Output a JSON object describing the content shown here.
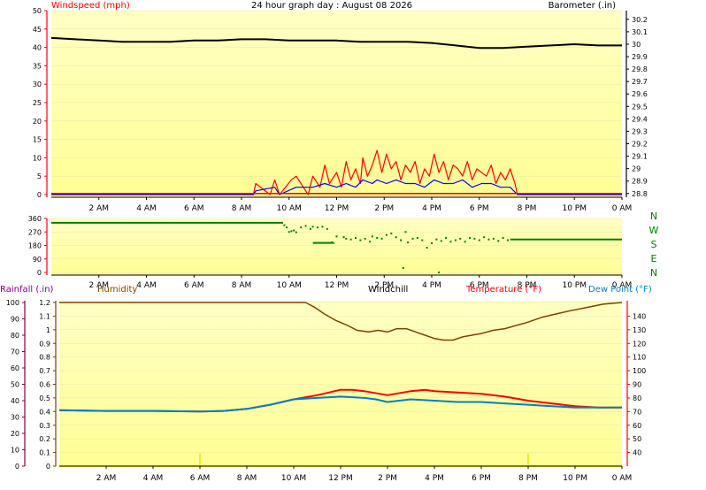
{
  "chart_data": [
    {
      "type": "line",
      "title": "24 hour graph day : August 08 2026",
      "x_ticks": [
        "2 AM",
        "4 AM",
        "6 AM",
        "8 AM",
        "10 AM",
        "12 PM",
        "2 PM",
        "4 PM",
        "6 PM",
        "8 PM",
        "10 PM",
        "0 AM"
      ],
      "x_range_hours": [
        0,
        24
      ],
      "axes": {
        "left": {
          "label": "Windspeed (mph)",
          "ylim": [
            0,
            50
          ],
          "ticks": [
            "0",
            "5",
            "10",
            "15",
            "20",
            "25",
            "30",
            "35",
            "40",
            "45",
            "50"
          ],
          "color": "#ff0000"
        },
        "right": {
          "label": "Barometer (.in)",
          "ylim": [
            28.77,
            30.27
          ],
          "ticks": [
            "28.8",
            "28.9",
            "29",
            "29.1",
            "29.2",
            "29.3",
            "29.4",
            "29.5",
            "29.6",
            "29.7",
            "29.8",
            "29.9",
            "30",
            "30.1",
            "30.2"
          ],
          "color": "#000000"
        }
      },
      "series": [
        {
          "name": "Barometer (.in)",
          "axis": "right",
          "color": "#000000",
          "x": [
            0,
            1,
            2,
            3,
            4,
            5,
            6,
            7,
            8,
            9,
            10,
            11,
            12,
            13,
            14,
            15,
            16,
            17,
            18,
            19,
            20,
            21,
            22,
            23,
            24
          ],
          "values": [
            30.05,
            30.04,
            30.03,
            30.02,
            30.02,
            30.02,
            30.03,
            30.03,
            30.04,
            30.04,
            30.03,
            30.03,
            30.03,
            30.02,
            30.02,
            30.02,
            30.01,
            29.99,
            29.97,
            29.97,
            29.98,
            29.99,
            30.0,
            29.99,
            29.99
          ]
        },
        {
          "name": "Wind gust (mph)",
          "axis": "left",
          "color": "#ff0000",
          "x": [
            0,
            8.5,
            8.6,
            9.2,
            9.4,
            9.6,
            10.1,
            10.3,
            10.8,
            11.0,
            11.3,
            11.5,
            11.7,
            12.0,
            12.2,
            12.4,
            12.6,
            12.8,
            13.0,
            13.1,
            13.3,
            13.5,
            13.7,
            13.9,
            14.1,
            14.3,
            14.5,
            14.7,
            14.9,
            15.1,
            15.3,
            15.5,
            15.7,
            15.9,
            16.1,
            16.3,
            16.5,
            16.7,
            16.9,
            17.1,
            17.3,
            17.5,
            17.7,
            17.9,
            18.1,
            18.3,
            18.5,
            18.7,
            18.9,
            19.1,
            19.3,
            19.5,
            19.6,
            24
          ],
          "values": [
            0,
            0,
            3,
            0,
            4,
            0,
            4,
            5,
            0,
            5,
            2,
            8,
            3,
            6,
            2,
            9,
            4,
            7,
            3,
            10,
            5,
            8,
            12,
            6,
            11,
            7,
            9,
            4,
            8,
            6,
            9,
            3,
            7,
            5,
            11,
            6,
            9,
            4,
            8,
            7,
            5,
            9,
            4,
            7,
            6,
            5,
            8,
            3,
            6,
            4,
            7,
            3,
            0,
            0
          ]
        },
        {
          "name": "Windspeed (mph)",
          "axis": "left",
          "color": "#0000ff",
          "x": [
            0,
            8.5,
            8.6,
            9.4,
            9.6,
            10.3,
            11.0,
            11.5,
            12.0,
            12.4,
            12.8,
            13.1,
            13.5,
            13.7,
            14.1,
            14.5,
            14.9,
            15.3,
            15.7,
            16.1,
            16.5,
            16.9,
            17.3,
            17.7,
            18.1,
            18.5,
            18.9,
            19.3,
            19.6,
            24
          ],
          "values": [
            0,
            0,
            1,
            2,
            0,
            2,
            2,
            3,
            2,
            3,
            2,
            4,
            3,
            4,
            3,
            4,
            3,
            3,
            2,
            4,
            3,
            3,
            4,
            2,
            3,
            3,
            2,
            2,
            0,
            0
          ]
        },
        {
          "name": "Calm threshold (mph)",
          "axis": "left",
          "color": "#ff0000",
          "x": [
            0,
            24
          ],
          "values": [
            0.3,
            0.3
          ]
        }
      ]
    },
    {
      "type": "scatter",
      "x_ticks": [
        "2 AM",
        "4 AM",
        "6 AM",
        "8 AM",
        "10 AM",
        "12 PM",
        "2 PM",
        "4 PM",
        "6 PM",
        "8 PM",
        "10 PM",
        "0 AM"
      ],
      "axes": {
        "left": {
          "ylim": [
            0,
            360
          ],
          "ticks": [
            "0",
            "90",
            "180",
            "270",
            "360"
          ],
          "color": "#ff0000"
        },
        "right": {
          "ticks": [
            "N",
            "W",
            "S",
            "E",
            "N"
          ],
          "color": "#008000"
        }
      },
      "series": [
        {
          "name": "Wind direction (deg)",
          "color": "#008000",
          "segments": [
            {
              "x": [
                0,
                9.75
              ],
              "values": [
                331,
                331
              ]
            },
            {
              "x": [
                11.0,
                11.9
              ],
              "values": [
                197,
                197
              ]
            },
            {
              "x": [
                19.3,
                24
              ],
              "values": [
                220,
                220
              ]
            }
          ],
          "x": [
            9.8,
            9.9,
            10.0,
            10.1,
            10.2,
            10.3,
            10.5,
            10.7,
            10.9,
            11.0,
            11.2,
            11.4,
            11.6,
            11.8,
            12.0,
            12.3,
            12.4,
            12.6,
            12.8,
            13.0,
            13.2,
            13.4,
            13.5,
            13.7,
            13.9,
            14.1,
            14.3,
            14.5,
            14.7,
            14.9,
            15.0,
            15.2,
            15.4,
            15.6,
            15.8,
            16.0,
            16.2,
            16.4,
            16.6,
            16.8,
            17.0,
            17.2,
            17.4,
            17.6,
            17.8,
            18.0,
            18.2,
            18.4,
            18.6,
            18.8,
            19.0,
            19.2
          ],
          "values": [
            315,
            300,
            270,
            275,
            280,
            268,
            300,
            310,
            290,
            305,
            300,
            305,
            290,
            200,
            240,
            235,
            225,
            220,
            230,
            215,
            225,
            205,
            240,
            230,
            225,
            250,
            260,
            235,
            215,
            270,
            200,
            225,
            230,
            215,
            165,
            195,
            220,
            210,
            230,
            205,
            215,
            225,
            205,
            230,
            225,
            215,
            235,
            220,
            225,
            210,
            230,
            215
          ]
        },
        {
          "name": "Wind direction outliers (deg)",
          "color": "#008000",
          "x": [
            14.8,
            16.3
          ],
          "values": [
            30,
            0
          ]
        }
      ]
    },
    {
      "type": "line",
      "x_ticks": [
        "2 AM",
        "4 AM",
        "6 AM",
        "8 AM",
        "10 AM",
        "12 PM",
        "2 PM",
        "4 PM",
        "6 PM",
        "8 PM",
        "10 PM",
        "0 AM"
      ],
      "legend": [
        "Rainfall (.in)",
        "Humidity",
        "Windchill",
        "Temperature (°F)",
        "Dew Point (°F)"
      ],
      "axes": {
        "left_outer": {
          "label": "Rainfall (.in)",
          "ylim": [
            0,
            100
          ],
          "ticks": [
            "0",
            "10",
            "20",
            "30",
            "40",
            "50",
            "60",
            "70",
            "80",
            "90",
            "100"
          ],
          "color": "#800080"
        },
        "left_inner": {
          "label": "Humidity",
          "ylim": [
            0,
            1.2
          ],
          "ticks": [
            "0",
            "0.1",
            "0.2",
            "0.3",
            "0.4",
            "0.5",
            "0.6",
            "0.7",
            "0.8",
            "0.9",
            "1",
            "1.1",
            "1.2"
          ],
          "color": "#804000"
        },
        "right": {
          "label": "Temperature (°F)",
          "ylim": [
            30,
            150
          ],
          "ticks": [
            "40",
            "50",
            "60",
            "70",
            "80",
            "90",
            "100",
            "110",
            "120",
            "130",
            "140"
          ],
          "color": "#ff0000"
        }
      },
      "series": [
        {
          "name": "Humidity",
          "axis": "left_outer",
          "color": "#804000",
          "x": [
            0,
            4,
            8,
            10,
            10.5,
            10.9,
            11.3,
            11.8,
            12.3,
            12.7,
            13.2,
            13.6,
            14.0,
            14.4,
            14.8,
            15.2,
            15.6,
            16.0,
            16.4,
            16.8,
            17.2,
            17.6,
            18.0,
            18.5,
            19.0,
            19.5,
            20.0,
            20.6,
            21.2,
            21.8,
            22.5,
            23.2,
            24
          ],
          "values": [
            100,
            100,
            100,
            100,
            100,
            97,
            93,
            89,
            86,
            83,
            82,
            83,
            82,
            84,
            84,
            82,
            80,
            78,
            77,
            77,
            79,
            80,
            81,
            83,
            84,
            86,
            88,
            91,
            93,
            95,
            97,
            99,
            100
          ]
        },
        {
          "name": "Temperature (°F)",
          "axis": "right",
          "color": "#ff0000",
          "x": [
            0,
            2,
            4,
            6,
            7,
            8,
            9,
            10,
            11,
            12,
            12.5,
            13,
            14,
            15,
            15.6,
            16,
            17,
            18,
            19,
            20,
            21,
            22,
            23,
            24
          ],
          "values": [
            71,
            70.5,
            70.5,
            70,
            70.5,
            72,
            75,
            79,
            82,
            86,
            86,
            85,
            82,
            85,
            86,
            85,
            84,
            83,
            81,
            78,
            76,
            74,
            73,
            73
          ]
        },
        {
          "name": "Dew Point (°F)",
          "axis": "right",
          "color": "#0080c0",
          "x": [
            0,
            2,
            4,
            6,
            7,
            8,
            9,
            10,
            11,
            12,
            13,
            13.5,
            14,
            15,
            16,
            17,
            18,
            19,
            20,
            21,
            22,
            23,
            24
          ],
          "values": [
            71,
            70.5,
            70.5,
            70,
            70.5,
            72,
            75,
            79,
            80,
            81,
            80,
            79,
            77,
            79,
            78,
            77,
            77,
            76,
            75,
            74,
            73,
            73,
            73
          ]
        },
        {
          "name": "Rainfall (.in)",
          "axis": "left_inner",
          "color": "#ffff00",
          "x": [
            0,
            24
          ],
          "values": [
            0,
            0
          ]
        }
      ]
    }
  ]
}
